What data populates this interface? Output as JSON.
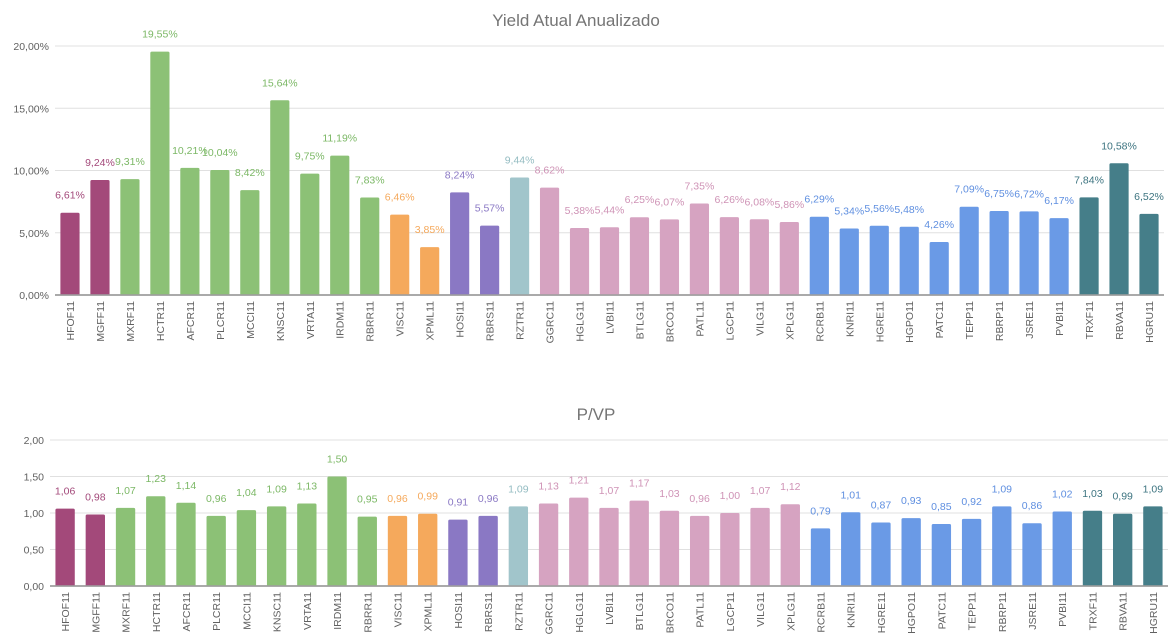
{
  "palette": {
    "plum": "#a3497a",
    "green": "#8cc176",
    "orange": "#f5a95c",
    "purple": "#8a78c4",
    "teal_light": "#a1c5cb",
    "pink": "#d6a3c1",
    "blue": "#6a9ae6",
    "teal_dark": "#457e89"
  },
  "chart_data": [
    {
      "type": "bar",
      "title": "Yield Atual Anualizado",
      "xlabel": "",
      "ylabel": "",
      "ylim": [
        0,
        20
      ],
      "yticks": [
        0,
        5,
        10,
        15,
        20
      ],
      "ytick_labels": [
        "0,00%",
        "5,00%",
        "10,00%",
        "15,00%",
        "20,00%"
      ],
      "grid": true,
      "legend": "none",
      "categories": [
        "HFOF11",
        "MGFF11",
        "MXRF11",
        "HCTR11",
        "AFCR11",
        "PLCR11",
        "MCCI11",
        "KNSC11",
        "VRTA11",
        "IRDM11",
        "RBRR11",
        "VISC11",
        "XPML11",
        "HOSI11",
        "RBRS11",
        "RZTR11",
        "GGRC11",
        "HGLG11",
        "LVBI11",
        "BTLG11",
        "BRCO11",
        "PATL11",
        "LGCP11",
        "VILG11",
        "XPLG11",
        "RCRB11",
        "KNRI11",
        "HGRE11",
        "HGPO11",
        "PATC11",
        "TEPP11",
        "RBRP11",
        "JSRE11",
        "PVBI11",
        "TRXF11",
        "RBVA11",
        "HGRU11"
      ],
      "values": [
        6.61,
        9.24,
        9.31,
        19.55,
        10.21,
        10.04,
        8.42,
        15.64,
        9.75,
        11.19,
        7.83,
        6.46,
        3.85,
        8.24,
        5.57,
        9.44,
        8.62,
        5.38,
        5.44,
        6.25,
        6.07,
        7.35,
        6.26,
        6.08,
        5.86,
        6.29,
        5.34,
        5.56,
        5.48,
        4.26,
        7.09,
        6.75,
        6.72,
        6.17,
        7.84,
        10.58,
        6.52
      ],
      "data_labels": [
        "6,61%",
        "9,24%",
        "9,31%",
        "19,55%",
        "10,21%",
        "10,04%",
        "8,42%",
        "15,64%",
        "9,75%",
        "11,19%",
        "7,83%",
        "6,46%",
        "3,85%",
        "8,24%",
        "5,57%",
        "9,44%",
        "8,62%",
        "5,38%",
        "5,44%",
        "6,25%",
        "6,07%",
        "7,35%",
        "6,26%",
        "6,08%",
        "5,86%",
        "6,29%",
        "5,34%",
        "5,56%",
        "5,48%",
        "4,26%",
        "7,09%",
        "6,75%",
        "6,72%",
        "6,17%",
        "7,84%",
        "10,58%",
        "6,52%"
      ],
      "groups": [
        "plum",
        "plum",
        "green",
        "green",
        "green",
        "green",
        "green",
        "green",
        "green",
        "green",
        "green",
        "orange",
        "orange",
        "purple",
        "purple",
        "teal_light",
        "pink",
        "pink",
        "pink",
        "pink",
        "pink",
        "pink",
        "pink",
        "pink",
        "pink",
        "blue",
        "blue",
        "blue",
        "blue",
        "blue",
        "blue",
        "blue",
        "blue",
        "blue",
        "teal_dark",
        "teal_dark",
        "teal_dark"
      ]
    },
    {
      "type": "bar",
      "title": "P/VP",
      "xlabel": "",
      "ylabel": "",
      "ylim": [
        0,
        2
      ],
      "yticks": [
        0,
        0.5,
        1,
        1.5,
        2
      ],
      "ytick_labels": [
        "0,00",
        "0,50",
        "1,00",
        "1,50",
        "2,00"
      ],
      "grid": true,
      "legend": "none",
      "categories": [
        "HFOF11",
        "MGFF11",
        "MXRF11",
        "HCTR11",
        "AFCR11",
        "PLCR11",
        "MCCI11",
        "KNSC11",
        "VRTA11",
        "IRDM11",
        "RBRR11",
        "VISC11",
        "XPML11",
        "HOSI11",
        "RBRS11",
        "RZTR11",
        "GGRC11",
        "HGLG11",
        "LVBI11",
        "BTLG11",
        "BRCO11",
        "PATL11",
        "LGCP11",
        "VILG11",
        "XPLG11",
        "RCRB11",
        "KNRI11",
        "HGRE11",
        "HGPO11",
        "PATC11",
        "TEPP11",
        "RBRP11",
        "JSRE11",
        "PVBI11",
        "TRXF11",
        "RBVA11",
        "HGRU11"
      ],
      "values": [
        1.06,
        0.98,
        1.07,
        1.23,
        1.14,
        0.96,
        1.04,
        1.09,
        1.13,
        1.5,
        0.95,
        0.96,
        0.99,
        0.91,
        0.96,
        1.09,
        1.13,
        1.21,
        1.07,
        1.17,
        1.03,
        0.96,
        1.0,
        1.07,
        1.12,
        0.79,
        1.01,
        0.87,
        0.93,
        0.85,
        0.92,
        1.09,
        0.86,
        1.02,
        1.03,
        0.99,
        1.09
      ],
      "data_labels": [
        "1,06",
        "0,98",
        "1,07",
        "1,23",
        "1,14",
        "0,96",
        "1,04",
        "1,09",
        "1,13",
        "1,50",
        "0,95",
        "0,96",
        "0,99",
        "0,91",
        "0,96",
        "1,09",
        "1,13",
        "1,21",
        "1,07",
        "1,17",
        "1,03",
        "0,96",
        "1,00",
        "1,07",
        "1,12",
        "0,79",
        "1,01",
        "0,87",
        "0,93",
        "0,85",
        "0,92",
        "1,09",
        "0,86",
        "1,02",
        "1,03",
        "0,99",
        "1,09"
      ],
      "groups": [
        "plum",
        "plum",
        "green",
        "green",
        "green",
        "green",
        "green",
        "green",
        "green",
        "green",
        "green",
        "orange",
        "orange",
        "purple",
        "purple",
        "teal_light",
        "pink",
        "pink",
        "pink",
        "pink",
        "pink",
        "pink",
        "pink",
        "pink",
        "pink",
        "blue",
        "blue",
        "blue",
        "blue",
        "blue",
        "blue",
        "blue",
        "blue",
        "blue",
        "teal_dark",
        "teal_dark",
        "teal_dark"
      ]
    }
  ]
}
